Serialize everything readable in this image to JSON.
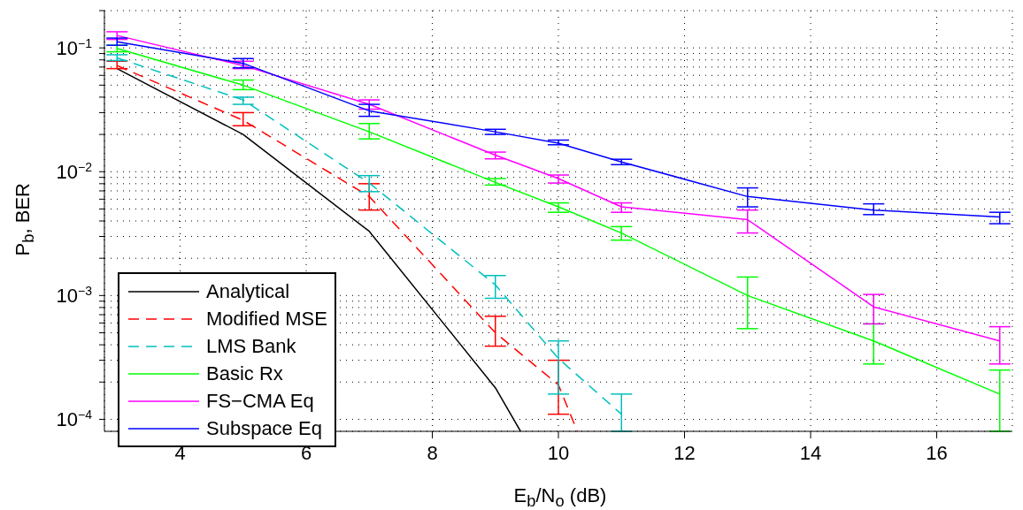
{
  "chart_data": {
    "type": "line",
    "xlabel": "E$_{b}$/N$_{o}$ (dB)",
    "ylabel": "P$_{b}$, BER",
    "log": "y",
    "grid": true,
    "legend": "bottom left",
    "marker": "none",
    "xlim": [
      2.8,
      17.2
    ],
    "xticks": [
      4,
      6,
      8,
      10,
      12,
      14,
      16
    ],
    "ylim": [
      8e-05,
      0.2
    ],
    "yticks": [
      {
        "value": 0.0001,
        "label": "10$^{−4}$"
      },
      {
        "value": 0.0002,
        "label": null
      },
      {
        "value": 0.0003,
        "label": null
      },
      {
        "value": 0.0004,
        "label": null
      },
      {
        "value": 0.0005,
        "label": null
      },
      {
        "value": 0.0006,
        "label": null
      },
      {
        "value": 0.0007,
        "label": null
      },
      {
        "value": 0.0008,
        "label": null
      },
      {
        "value": 0.0009,
        "label": null
      },
      {
        "value": 0.001,
        "label": "10$^{−3}$"
      },
      {
        "value": 0.002,
        "label": null
      },
      {
        "value": 0.003,
        "label": null
      },
      {
        "value": 0.004,
        "label": null
      },
      {
        "value": 0.005,
        "label": null
      },
      {
        "value": 0.006,
        "label": null
      },
      {
        "value": 0.007,
        "label": null
      },
      {
        "value": 0.008,
        "label": null
      },
      {
        "value": 0.009,
        "label": null
      },
      {
        "value": 0.01,
        "label": "10$^{−2}$"
      },
      {
        "value": 0.02,
        "label": null
      },
      {
        "value": 0.03,
        "label": null
      },
      {
        "value": 0.04,
        "label": null
      },
      {
        "value": 0.05,
        "label": null
      },
      {
        "value": 0.06,
        "label": null
      },
      {
        "value": 0.07,
        "label": null
      },
      {
        "value": 0.08,
        "label": null
      },
      {
        "value": 0.09,
        "label": null
      },
      {
        "value": 0.1,
        "label": "10$^{−1}$"
      },
      {
        "value": 0.2,
        "label": null
      }
    ],
    "series": [
      {
        "name": "Analytical",
        "color": "#000000",
        "line_style": "solid",
        "x": [
          3,
          5,
          7,
          9,
          9.4
        ],
        "values": [
          0.068,
          0.02,
          0.0033,
          0.00018,
          8e-05
        ]
      },
      {
        "name": "Modified MSE",
        "color": "#ff0000",
        "line_style": "dashed",
        "x": [
          3,
          5,
          7,
          9,
          10,
          10.3
        ],
        "values": [
          0.072,
          0.026,
          0.0063,
          0.0005,
          0.00019,
          8e-05
        ],
        "errors": [
          [
            0.068,
            0.078
          ],
          [
            0.0235,
            0.03
          ],
          [
            0.0049,
            0.008
          ],
          [
            0.00039,
            0.00068
          ],
          [
            0.00011,
            0.0003
          ],
          null
        ]
      },
      {
        "name": "LMS Bank",
        "color": "#00bfbf",
        "line_style": "dashed",
        "x": [
          3,
          5,
          7,
          9,
          10,
          11
        ],
        "values": [
          0.083,
          0.038,
          0.0081,
          0.00122,
          0.00031,
          0.00011
        ],
        "errors": [
          [
            0.079,
            0.088
          ],
          [
            0.035,
            0.04
          ],
          [
            0.0069,
            0.0093
          ],
          [
            0.00095,
            0.00145
          ],
          [
            0.00016,
            0.00043
          ],
          [
            8e-05,
            0.00016
          ]
        ]
      },
      {
        "name": "Basic Rx",
        "color": "#00ff00",
        "line_style": "solid",
        "x": [
          3,
          5,
          7,
          9,
          10,
          11,
          13,
          15,
          17
        ],
        "values": [
          0.099,
          0.05,
          0.021,
          0.0082,
          0.0052,
          0.0032,
          0.001,
          0.00043,
          0.00016
        ],
        "errors": [
          [
            0.093,
            0.105
          ],
          [
            0.046,
            0.055
          ],
          [
            0.0184,
            0.0245
          ],
          [
            0.0078,
            0.0088
          ],
          [
            0.0047,
            0.0056
          ],
          [
            0.0028,
            0.0036
          ],
          [
            0.00054,
            0.00141
          ],
          [
            0.00028,
            0.00059
          ],
          [
            8e-05,
            0.00025
          ]
        ]
      },
      {
        "name": "FS−CMA Eq",
        "color": "#ff00ff",
        "line_style": "solid",
        "x": [
          3,
          5,
          7,
          9,
          10,
          11,
          13,
          15,
          17
        ],
        "values": [
          0.126,
          0.072,
          0.035,
          0.0136,
          0.0088,
          0.0052,
          0.0041,
          0.00081,
          0.00043
        ],
        "errors": [
          [
            0.117,
            0.135
          ],
          [
            0.068,
            0.078
          ],
          [
            0.032,
            0.038
          ],
          [
            0.0127,
            0.0144
          ],
          [
            0.0081,
            0.0094
          ],
          [
            0.0047,
            0.0056
          ],
          [
            0.0032,
            0.0049
          ],
          [
            0.00059,
            0.00102
          ],
          [
            0.00028,
            0.00056
          ]
        ]
      },
      {
        "name": "Subspace Eq",
        "color": "#0000ff",
        "line_style": "solid",
        "x": [
          3,
          5,
          7,
          9,
          10,
          11,
          13,
          15,
          17
        ],
        "values": [
          0.112,
          0.075,
          0.031,
          0.021,
          0.017,
          0.012,
          0.0063,
          0.0049,
          0.0043
        ],
        "errors": [
          [
            0.105,
            0.12
          ],
          [
            0.069,
            0.082
          ],
          [
            0.028,
            0.035
          ],
          [
            0.02,
            0.022
          ],
          [
            0.0165,
            0.018
          ],
          [
            0.0114,
            0.0126
          ],
          [
            0.0052,
            0.0074
          ],
          [
            0.0045,
            0.0055
          ],
          [
            0.0038,
            0.0047
          ]
        ]
      }
    ]
  }
}
